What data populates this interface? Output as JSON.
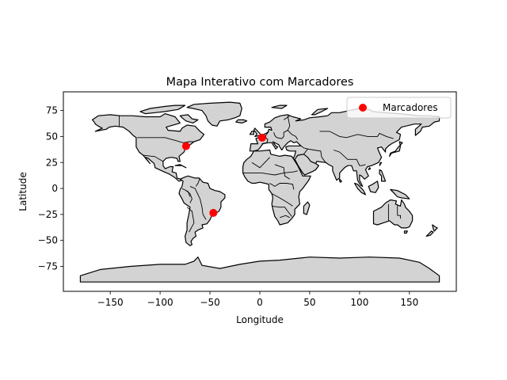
{
  "chart_data": {
    "type": "scatter",
    "title": "Mapa Interativo com Marcadores",
    "xlabel": "Longitude",
    "ylabel": "Latitude",
    "xlim": [
      -197,
      197
    ],
    "ylim": [
      -99,
      93
    ],
    "xticks": [
      -150,
      -100,
      -50,
      0,
      50,
      100,
      150
    ],
    "xtick_labels": [
      "−150",
      "−100",
      "−50",
      "0",
      "50",
      "100",
      "150"
    ],
    "yticks": [
      -75,
      -50,
      -25,
      0,
      25,
      50,
      75
    ],
    "ytick_labels": [
      "−75",
      "−50",
      "−25",
      "0",
      "25",
      "50",
      "75"
    ],
    "grid": false,
    "legend": {
      "position": "top-right",
      "entries": [
        "Marcadores"
      ]
    },
    "series": [
      {
        "name": "Marcadores",
        "color": "#ff0000",
        "points": [
          {
            "x": -74.0,
            "y": 40.7
          },
          {
            "x": 2.3,
            "y": 48.9
          },
          {
            "x": -46.6,
            "y": -23.5
          }
        ]
      }
    ],
    "basemap": {
      "land_color": "#d3d3d3",
      "edge_color": "#000000"
    }
  }
}
